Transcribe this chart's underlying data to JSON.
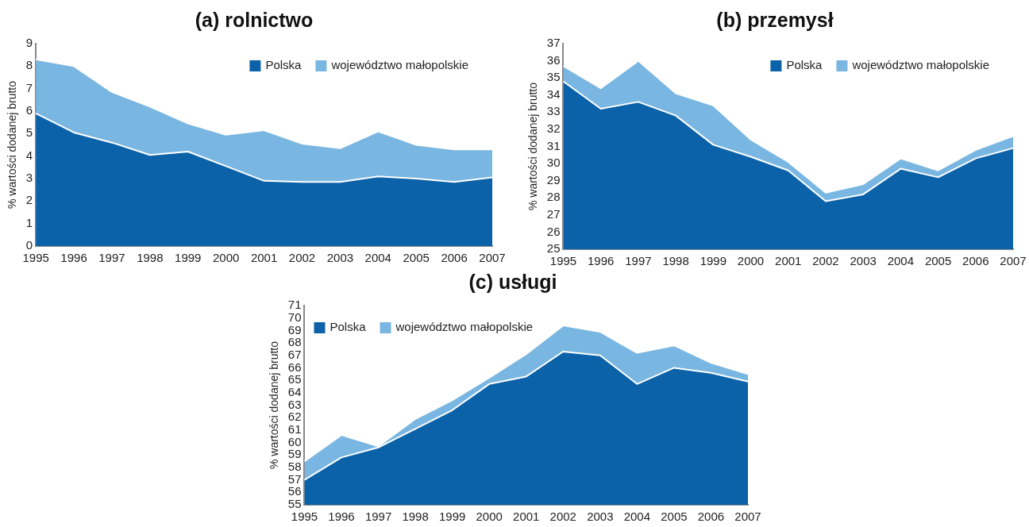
{
  "chart_data": [
    {
      "type": "area",
      "title": "(a) rolnictwo",
      "ylabel": "% wartości dodanej brutto",
      "categories": [
        "1995",
        "1996",
        "1997",
        "1998",
        "1999",
        "2000",
        "2001",
        "2002",
        "2003",
        "2004",
        "2005",
        "2006",
        "2007"
      ],
      "ylim": [
        0,
        9
      ],
      "yticks": [
        0,
        1,
        2,
        3,
        4,
        5,
        6,
        7,
        8,
        9
      ],
      "grid": false,
      "legend": "top right",
      "series": [
        {
          "name": "Polska",
          "color": "#0b62a8",
          "values": [
            5.9,
            5.05,
            4.6,
            4.05,
            4.2,
            3.55,
            2.9,
            2.85,
            2.85,
            3.1,
            3.0,
            2.85,
            3.05
          ]
        },
        {
          "name": "województwo małopolskie",
          "color": "#79b6e1",
          "values": [
            8.3,
            8.0,
            6.85,
            6.2,
            5.45,
            4.95,
            5.15,
            4.55,
            4.35,
            5.1,
            4.5,
            4.3,
            4.3
          ]
        }
      ]
    },
    {
      "type": "area",
      "title": "(b) przemysł",
      "ylabel": "% wartości dodanej brutto",
      "categories": [
        "1995",
        "1996",
        "1997",
        "1998",
        "1999",
        "2000",
        "2001",
        "2002",
        "2003",
        "2004",
        "2005",
        "2006",
        "2007"
      ],
      "ylim": [
        25,
        37
      ],
      "yticks": [
        25,
        26,
        27,
        28,
        29,
        30,
        31,
        32,
        33,
        34,
        35,
        36,
        37
      ],
      "grid": false,
      "legend": "top right",
      "series": [
        {
          "name": "Polska",
          "color": "#0b62a8",
          "values": [
            34.8,
            33.2,
            33.6,
            32.8,
            31.1,
            30.4,
            29.6,
            27.8,
            28.2,
            29.7,
            29.2,
            30.3,
            30.9
          ]
        },
        {
          "name": "województwo małopolskie",
          "color": "#79b6e1",
          "values": [
            35.7,
            34.4,
            36.0,
            34.1,
            33.4,
            31.4,
            30.1,
            28.3,
            28.8,
            30.3,
            29.6,
            30.8,
            31.6
          ]
        }
      ]
    },
    {
      "type": "area",
      "title": "(c) usługi",
      "ylabel": "% wartości dodanej brutto",
      "categories": [
        "1995",
        "1996",
        "1997",
        "1998",
        "1999",
        "2000",
        "2001",
        "2002",
        "2003",
        "2004",
        "2005",
        "2006",
        "2007"
      ],
      "ylim": [
        55,
        71
      ],
      "yticks": [
        55,
        56,
        57,
        58,
        59,
        60,
        61,
        62,
        63,
        64,
        65,
        66,
        67,
        68,
        69,
        70,
        71
      ],
      "grid": false,
      "legend": "top left",
      "series": [
        {
          "name": "Polska",
          "color": "#0b62a8",
          "values": [
            57.0,
            58.8,
            59.6,
            61.1,
            62.6,
            64.7,
            65.3,
            67.3,
            67.0,
            64.7,
            66.0,
            65.6,
            64.9
          ]
        },
        {
          "name": "województwo małopolskie",
          "color": "#79b6e1",
          "values": [
            58.5,
            60.6,
            59.7,
            61.9,
            63.4,
            65.2,
            67.1,
            69.4,
            68.9,
            67.2,
            67.8,
            66.4,
            65.5
          ]
        }
      ]
    }
  ]
}
